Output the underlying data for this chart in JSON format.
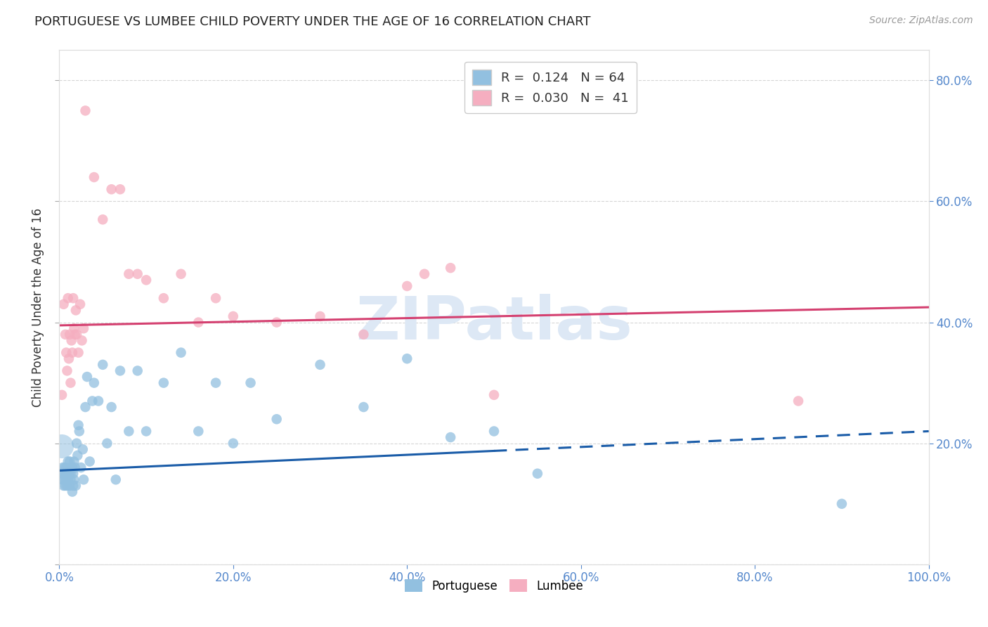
{
  "title": "PORTUGUESE VS LUMBEE CHILD POVERTY UNDER THE AGE OF 16 CORRELATION CHART",
  "source": "Source: ZipAtlas.com",
  "ylabel": "Child Poverty Under the Age of 16",
  "xlim": [
    0,
    1.0
  ],
  "ylim": [
    0,
    0.85
  ],
  "xticks": [
    0.0,
    0.2,
    0.4,
    0.6,
    0.8,
    1.0
  ],
  "xticklabels": [
    "0.0%",
    "20.0%",
    "40.0%",
    "60.0%",
    "80.0%",
    "100.0%"
  ],
  "yticks_right": [
    0.2,
    0.4,
    0.6,
    0.8
  ],
  "yticklabels_right": [
    "20.0%",
    "40.0%",
    "60.0%",
    "80.0%"
  ],
  "portuguese_color": "#92c0e0",
  "lumbee_color": "#f5aec0",
  "portuguese_line_color": "#1a5ca8",
  "lumbee_line_color": "#d44070",
  "legend_R_portuguese": "0.124",
  "legend_N_portuguese": "64",
  "legend_R_lumbee": "0.030",
  "legend_N_lumbee": "41",
  "watermark": "ZIPatlas",
  "portuguese_x": [
    0.002,
    0.003,
    0.004,
    0.005,
    0.005,
    0.006,
    0.006,
    0.007,
    0.007,
    0.008,
    0.008,
    0.009,
    0.009,
    0.01,
    0.01,
    0.011,
    0.012,
    0.012,
    0.013,
    0.013,
    0.014,
    0.015,
    0.015,
    0.016,
    0.016,
    0.017,
    0.017,
    0.018,
    0.019,
    0.02,
    0.021,
    0.022,
    0.023,
    0.025,
    0.027,
    0.028,
    0.03,
    0.032,
    0.035,
    0.038,
    0.04,
    0.045,
    0.05,
    0.055,
    0.06,
    0.065,
    0.07,
    0.08,
    0.09,
    0.1,
    0.12,
    0.14,
    0.16,
    0.18,
    0.2,
    0.22,
    0.25,
    0.3,
    0.35,
    0.4,
    0.45,
    0.5,
    0.55,
    0.9
  ],
  "portuguese_y": [
    0.15,
    0.14,
    0.16,
    0.13,
    0.15,
    0.14,
    0.16,
    0.13,
    0.15,
    0.14,
    0.16,
    0.13,
    0.15,
    0.14,
    0.17,
    0.15,
    0.13,
    0.17,
    0.14,
    0.15,
    0.16,
    0.12,
    0.16,
    0.13,
    0.15,
    0.14,
    0.17,
    0.16,
    0.13,
    0.2,
    0.18,
    0.23,
    0.22,
    0.16,
    0.19,
    0.14,
    0.26,
    0.31,
    0.17,
    0.27,
    0.3,
    0.27,
    0.33,
    0.2,
    0.26,
    0.14,
    0.32,
    0.22,
    0.32,
    0.22,
    0.3,
    0.35,
    0.22,
    0.3,
    0.2,
    0.3,
    0.24,
    0.33,
    0.26,
    0.34,
    0.21,
    0.22,
    0.15,
    0.1
  ],
  "portuguese_large_x": [
    0.003
  ],
  "portuguese_large_y": [
    0.195
  ],
  "lumbee_x": [
    0.003,
    0.005,
    0.007,
    0.008,
    0.009,
    0.01,
    0.011,
    0.012,
    0.013,
    0.014,
    0.015,
    0.016,
    0.017,
    0.018,
    0.019,
    0.02,
    0.022,
    0.024,
    0.026,
    0.028,
    0.03,
    0.04,
    0.05,
    0.06,
    0.07,
    0.08,
    0.09,
    0.1,
    0.12,
    0.14,
    0.16,
    0.18,
    0.2,
    0.25,
    0.3,
    0.35,
    0.4,
    0.42,
    0.45,
    0.5,
    0.85
  ],
  "lumbee_y": [
    0.28,
    0.43,
    0.38,
    0.35,
    0.32,
    0.44,
    0.34,
    0.38,
    0.3,
    0.37,
    0.35,
    0.44,
    0.39,
    0.38,
    0.42,
    0.38,
    0.35,
    0.43,
    0.37,
    0.39,
    0.75,
    0.64,
    0.57,
    0.62,
    0.62,
    0.48,
    0.48,
    0.47,
    0.44,
    0.48,
    0.4,
    0.44,
    0.41,
    0.4,
    0.41,
    0.38,
    0.46,
    0.48,
    0.49,
    0.28,
    0.27
  ],
  "portuguese_line_solid_end": 0.5,
  "lumbee_line_solid_end": 1.0,
  "background_color": "#ffffff",
  "grid_color": "#cccccc",
  "portuguese_line_y0": 0.155,
  "portuguese_line_y1": 0.22,
  "lumbee_line_y0": 0.395,
  "lumbee_line_y1": 0.425
}
